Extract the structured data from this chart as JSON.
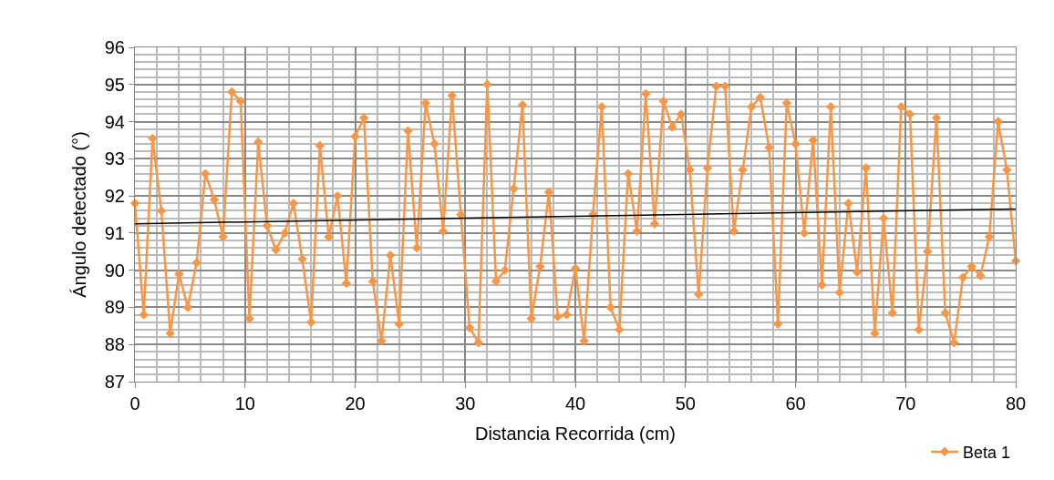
{
  "chart_data": {
    "type": "line",
    "xlabel": "Distancia Recorrida (cm)",
    "ylabel": "Ángulo detectado (°)",
    "xlim": [
      0,
      80
    ],
    "xticks": [
      0,
      10,
      20,
      30,
      40,
      50,
      60,
      70,
      80
    ],
    "ylim": [
      87,
      96
    ],
    "yticks": [
      87,
      88,
      89,
      90,
      91,
      92,
      93,
      94,
      95,
      96
    ],
    "grid": true,
    "legend": "bottom right",
    "x": [
      0,
      0.8,
      1.6,
      2.4,
      3.2,
      4.0,
      4.8,
      5.6,
      6.4,
      7.2,
      8.0,
      8.8,
      9.6,
      10.4,
      11.2,
      12.0,
      12.8,
      13.6,
      14.4,
      15.2,
      16.0,
      16.8,
      17.6,
      18.4,
      19.2,
      20.0,
      20.8,
      21.6,
      22.4,
      23.2,
      24.0,
      24.8,
      25.6,
      26.4,
      27.2,
      28.0,
      28.8,
      29.6,
      30.4,
      31.2,
      32.0,
      32.8,
      33.6,
      34.4,
      35.2,
      36.0,
      36.8,
      37.6,
      38.4,
      39.2,
      40.0,
      40.8,
      41.6,
      42.4,
      43.2,
      44.0,
      44.8,
      45.6,
      46.4,
      47.2,
      48.0,
      48.8,
      49.6,
      50.4,
      51.2,
      52.0,
      52.8,
      53.6,
      54.4,
      55.2,
      56.0,
      56.8,
      57.6,
      58.4,
      59.2,
      60.0,
      60.8,
      61.6,
      62.4,
      63.2,
      64.0,
      64.8,
      65.6,
      66.4,
      67.2,
      68.0,
      68.8,
      69.6,
      70.4,
      71.2,
      72.0,
      72.8,
      73.6,
      74.4,
      75.2,
      76.0,
      76.8,
      77.6,
      78.4,
      79.2,
      80.0
    ],
    "series": [
      {
        "name": "Beta 1",
        "color": "#f79646",
        "marker": "diamond",
        "values": [
          91.8,
          88.8,
          93.55,
          91.6,
          88.3,
          89.9,
          89.0,
          90.2,
          92.6,
          91.9,
          90.9,
          94.8,
          94.55,
          88.7,
          93.45,
          91.2,
          90.55,
          91.0,
          91.8,
          90.3,
          88.6,
          93.35,
          90.9,
          92.0,
          89.65,
          93.6,
          94.1,
          89.7,
          88.1,
          90.4,
          88.55,
          93.75,
          90.6,
          94.5,
          93.4,
          91.05,
          94.7,
          91.5,
          88.45,
          88.05,
          95.0,
          89.7,
          90.0,
          92.2,
          94.45,
          88.7,
          90.1,
          92.1,
          88.75,
          88.8,
          90.05,
          88.1,
          91.5,
          94.4,
          89.0,
          88.4,
          92.6,
          91.05,
          94.75,
          91.25,
          94.55,
          93.85,
          94.2,
          92.7,
          89.35,
          92.75,
          94.95,
          94.95,
          91.05,
          92.7,
          94.4,
          94.65,
          93.3,
          88.55,
          94.5,
          93.4,
          91.0,
          93.5,
          89.6,
          94.4,
          89.4,
          91.8,
          89.95,
          92.75,
          88.3,
          91.4,
          88.85,
          94.4,
          94.2,
          88.4,
          90.5,
          94.1,
          88.85,
          88.05,
          89.8,
          90.1,
          89.85,
          90.9,
          94.0,
          92.7,
          90.25
        ]
      },
      {
        "type": "line",
        "color": "#000000",
        "marker": "none",
        "x": [
          0,
          80
        ],
        "values": [
          91.25,
          91.65
        ]
      }
    ]
  }
}
